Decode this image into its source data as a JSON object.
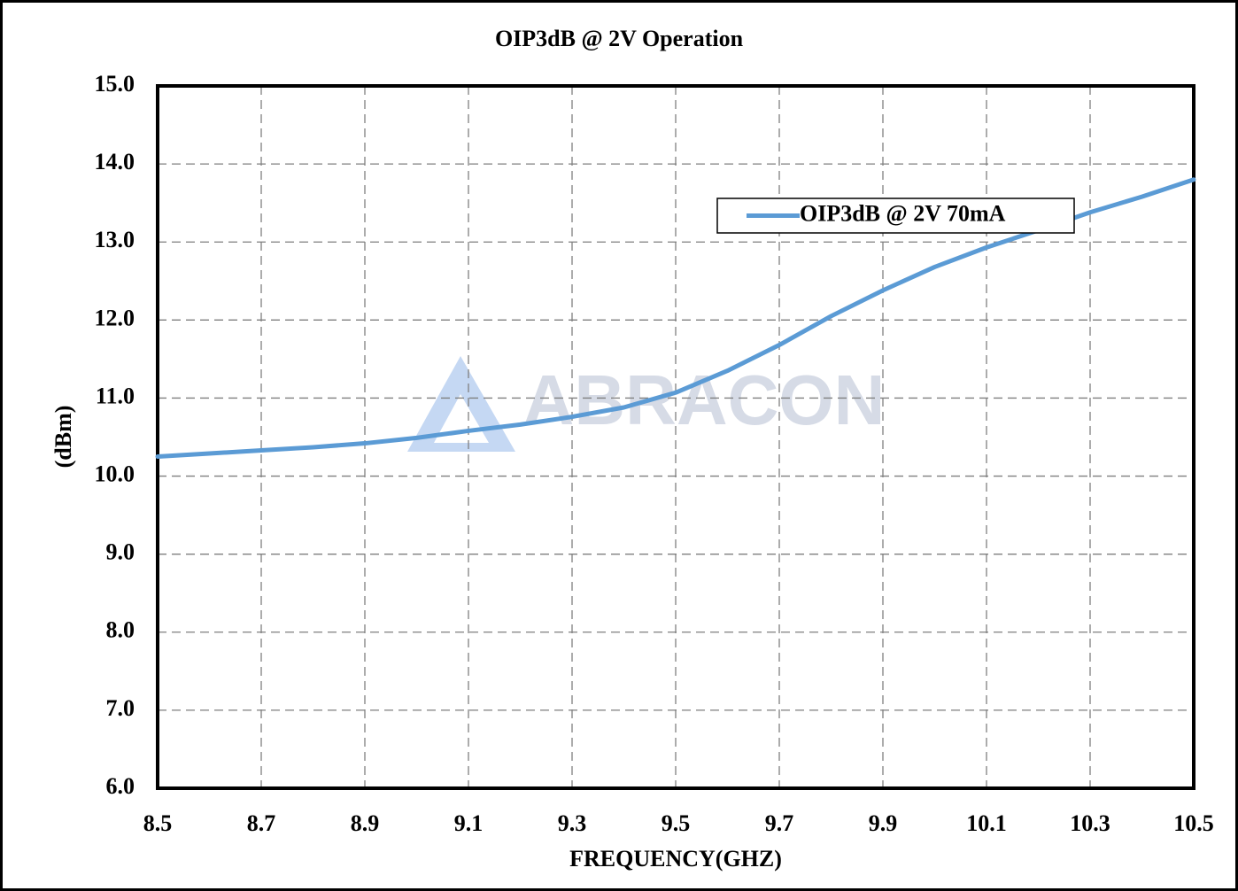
{
  "chart_data": {
    "type": "line",
    "title": "OIP3dB @ 2V Operation",
    "xlabel": "FREQUENCY(GHZ)",
    "ylabel": "(dBm)",
    "watermark": "ABRACON",
    "x": [
      8.5,
      8.6,
      8.7,
      8.8,
      8.9,
      9.0,
      9.1,
      9.2,
      9.3,
      9.4,
      9.5,
      9.6,
      9.7,
      9.8,
      9.9,
      10.0,
      10.1,
      10.2,
      10.3,
      10.4,
      10.5
    ],
    "series": [
      {
        "name": "OIP3dB @ 2V 70mA",
        "color": "#5b9bd5",
        "values": [
          10.25,
          10.29,
          10.33,
          10.37,
          10.42,
          10.49,
          10.58,
          10.66,
          10.76,
          10.88,
          11.07,
          11.35,
          11.68,
          12.05,
          12.38,
          12.68,
          12.93,
          13.15,
          13.38,
          13.58,
          13.8
        ]
      }
    ],
    "xlim": [
      8.5,
      10.5
    ],
    "xticks": [
      8.5,
      8.7,
      8.9,
      9.1,
      9.3,
      9.5,
      9.7,
      9.9,
      10.1,
      10.3,
      10.5
    ],
    "ylim": [
      6,
      15
    ],
    "yticks": [
      {
        "value": 6,
        "label": "6.0"
      },
      {
        "value": 7,
        "label": "7.0"
      },
      {
        "value": 8,
        "label": "8.0"
      },
      {
        "value": 9,
        "label": "9.0"
      },
      {
        "value": 10,
        "label": "10.0"
      },
      {
        "value": 11,
        "label": "11.0"
      },
      {
        "value": 12,
        "label": "12.0"
      },
      {
        "value": 13,
        "label": "13.0"
      },
      {
        "value": 14,
        "label": "14.0"
      },
      {
        "value": 15,
        "label": "15.0"
      }
    ],
    "grid": true,
    "legend": "upper right"
  }
}
